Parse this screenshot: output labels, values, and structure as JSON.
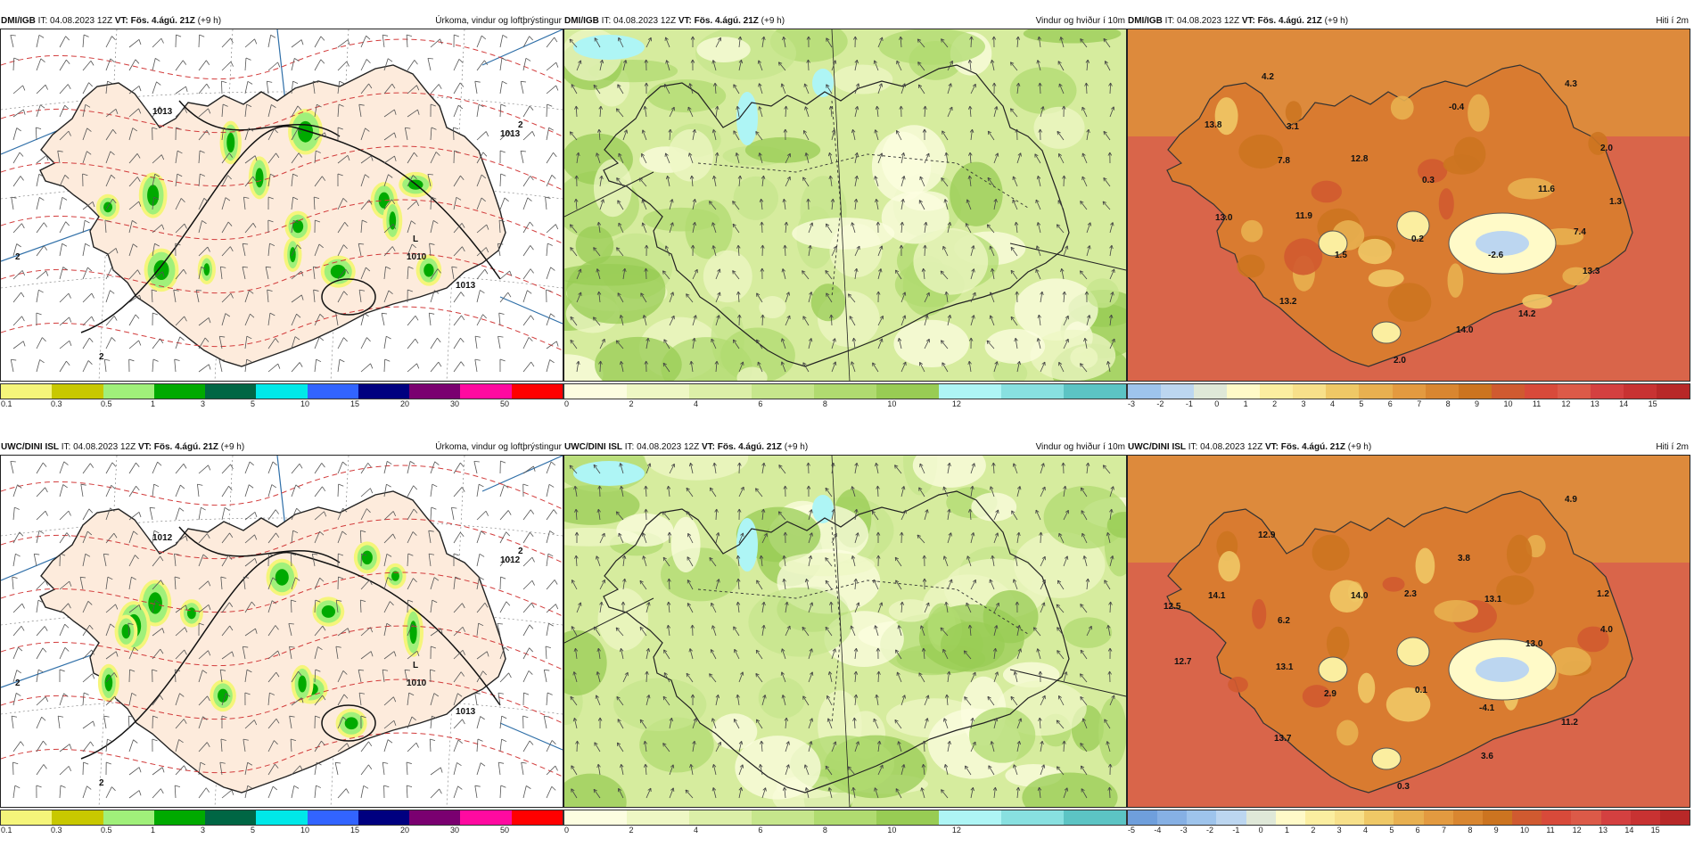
{
  "panels": [
    {
      "id": "dmi-precip",
      "model": "DMI/IGB",
      "it": "IT: 04.08.2023 12Z",
      "vt": "VT: Fös. 4.ágú. 21Z",
      "offset": "(+9 h)",
      "product": "Úrkoma, vindur og loftþrýstingur",
      "kind": "precip",
      "labels": [
        {
          "text": "1010"
        },
        {
          "text": "L"
        },
        {
          "text": "1013"
        },
        {
          "text": "1013"
        },
        {
          "text": "1013"
        },
        {
          "text": "2"
        },
        {
          "text": "2"
        },
        {
          "text": "2"
        }
      ],
      "colorbar": {
        "colors": [
          "#f5f57a",
          "#c8c800",
          "#a0f07a",
          "#00aa00",
          "#006644",
          "#00e8e8",
          "#3264ff",
          "#000080",
          "#7a0070",
          "#ff0aa0",
          "#ff0000"
        ],
        "ticks": [
          "0.1",
          "0.3",
          "0.5",
          "1",
          "3",
          "5",
          "10",
          "15",
          "20",
          "30",
          "50"
        ]
      }
    },
    {
      "id": "dmi-wind",
      "model": "DMI/IGB",
      "it": "IT: 04.08.2023 12Z",
      "vt": "VT: Fös. 4.ágú. 21Z",
      "offset": "(+9 h)",
      "product": "Vindur og hviður í 10m",
      "kind": "wind",
      "labels": [],
      "colorbar": {
        "colors": [
          "#fcfde0",
          "#eef7c4",
          "#dcefa8",
          "#c6e68c",
          "#b0db70",
          "#98cc54",
          "#aef5f5",
          "#88e0e0",
          "#5cc4c4"
        ],
        "ticks": [
          "0",
          "2",
          "4",
          "6",
          "8",
          "10",
          "12"
        ]
      }
    },
    {
      "id": "dmi-temp",
      "model": "DMI/IGB",
      "it": "IT: 04.08.2023 12Z",
      "vt": "VT: Fös. 4.ágú. 21Z",
      "offset": "(+9 h)",
      "product": "Hiti í 2m",
      "kind": "temp",
      "labels": [
        {
          "text": "4.2"
        },
        {
          "text": "4.3"
        },
        {
          "text": "13.8"
        },
        {
          "text": "3.1"
        },
        {
          "text": "-0.4"
        },
        {
          "text": "7.8"
        },
        {
          "text": "12.8"
        },
        {
          "text": "2.0"
        },
        {
          "text": "0.3"
        },
        {
          "text": "11.6"
        },
        {
          "text": "1.3"
        },
        {
          "text": "13.0"
        },
        {
          "text": "11.9"
        },
        {
          "text": "7.4"
        },
        {
          "text": "0.2"
        },
        {
          "text": "1.5"
        },
        {
          "text": "-2.6"
        },
        {
          "text": "13.3"
        },
        {
          "text": "13.2"
        },
        {
          "text": "14.2"
        },
        {
          "text": "14.0"
        },
        {
          "text": "2.0"
        }
      ],
      "colorbar": {
        "colors": [
          "#9ec4ec",
          "#bcd6f0",
          "#dfe8d8",
          "#fffac8",
          "#fbeea0",
          "#f7e08a",
          "#efc866",
          "#e8b050",
          "#e39a40",
          "#d98630",
          "#cc7420",
          "#d05a30",
          "#d84a3a",
          "#dc5a48",
          "#d44040",
          "#c83232",
          "#b82828"
        ],
        "ticks": [
          "-3",
          "-2",
          "-1",
          "0",
          "1",
          "2",
          "3",
          "4",
          "5",
          "6",
          "7",
          "8",
          "9",
          "10",
          "11",
          "12",
          "13",
          "14",
          "15"
        ]
      }
    },
    {
      "id": "uwc-precip",
      "model": "UWC/DINI ISL",
      "it": "IT: 04.08.2023 12Z",
      "vt": "VT: Fös. 4.ágú. 21Z",
      "offset": "(+9 h)",
      "product": "Úrkoma, vindur og loftþrýstingur",
      "kind": "precip",
      "labels": [
        {
          "text": "1010"
        },
        {
          "text": "L"
        },
        {
          "text": "1013"
        },
        {
          "text": "1012"
        },
        {
          "text": "1012"
        },
        {
          "text": "2"
        },
        {
          "text": "2"
        },
        {
          "text": "2"
        }
      ],
      "colorbar": {
        "colors": [
          "#f5f57a",
          "#c8c800",
          "#a0f07a",
          "#00aa00",
          "#006644",
          "#00e8e8",
          "#3264ff",
          "#000080",
          "#7a0070",
          "#ff0aa0",
          "#ff0000"
        ],
        "ticks": [
          "0.1",
          "0.3",
          "0.5",
          "1",
          "3",
          "5",
          "10",
          "15",
          "20",
          "30",
          "50"
        ]
      }
    },
    {
      "id": "uwc-wind",
      "model": "UWC/DINI ISL",
      "it": "IT: 04.08.2023 12Z",
      "vt": "VT: Fös. 4.ágú. 21Z",
      "offset": "(+9 h)",
      "product": "Vindur og hviður í 10m",
      "kind": "wind",
      "labels": [],
      "colorbar": {
        "colors": [
          "#fcfde0",
          "#eef7c4",
          "#dcefa8",
          "#c6e68c",
          "#b0db70",
          "#98cc54",
          "#aef5f5",
          "#88e0e0",
          "#5cc4c4"
        ],
        "ticks": [
          "0",
          "2",
          "4",
          "6",
          "8",
          "10",
          "12"
        ]
      }
    },
    {
      "id": "uwc-temp",
      "model": "UWC/DINI ISL",
      "it": "IT: 04.08.2023 12Z",
      "vt": "VT: Fös. 4.ágú. 21Z",
      "offset": "(+9 h)",
      "product": "Hiti í 2m",
      "kind": "temp",
      "labels": [
        {
          "text": "4.9"
        },
        {
          "text": "12.9"
        },
        {
          "text": "3.8"
        },
        {
          "text": "12.5"
        },
        {
          "text": "14.1"
        },
        {
          "text": "6.2"
        },
        {
          "text": "14.0"
        },
        {
          "text": "2.3"
        },
        {
          "text": "13.1"
        },
        {
          "text": "1.2"
        },
        {
          "text": "12.7"
        },
        {
          "text": "13.1"
        },
        {
          "text": "13.0"
        },
        {
          "text": "4.0"
        },
        {
          "text": "2.9"
        },
        {
          "text": "0.1"
        },
        {
          "text": "-4.1"
        },
        {
          "text": "11.2"
        },
        {
          "text": "13.7"
        },
        {
          "text": "3.6"
        },
        {
          "text": "0.3"
        }
      ],
      "colorbar": {
        "colors": [
          "#6f9fdc",
          "#86b0e4",
          "#9ec4ec",
          "#bcd6f0",
          "#dfe8d8",
          "#fffac8",
          "#fbeea0",
          "#f7e08a",
          "#efc866",
          "#e8b050",
          "#e39a40",
          "#d98630",
          "#cc7420",
          "#d05a30",
          "#d84a3a",
          "#dc5a48",
          "#d44040",
          "#c83232",
          "#b82828"
        ],
        "ticks": [
          "-5",
          "-4",
          "-3",
          "-2",
          "-1",
          "0",
          "1",
          "2",
          "3",
          "4",
          "5",
          "6",
          "7",
          "8",
          "9",
          "10",
          "11",
          "12",
          "13",
          "14",
          "15"
        ]
      }
    }
  ]
}
